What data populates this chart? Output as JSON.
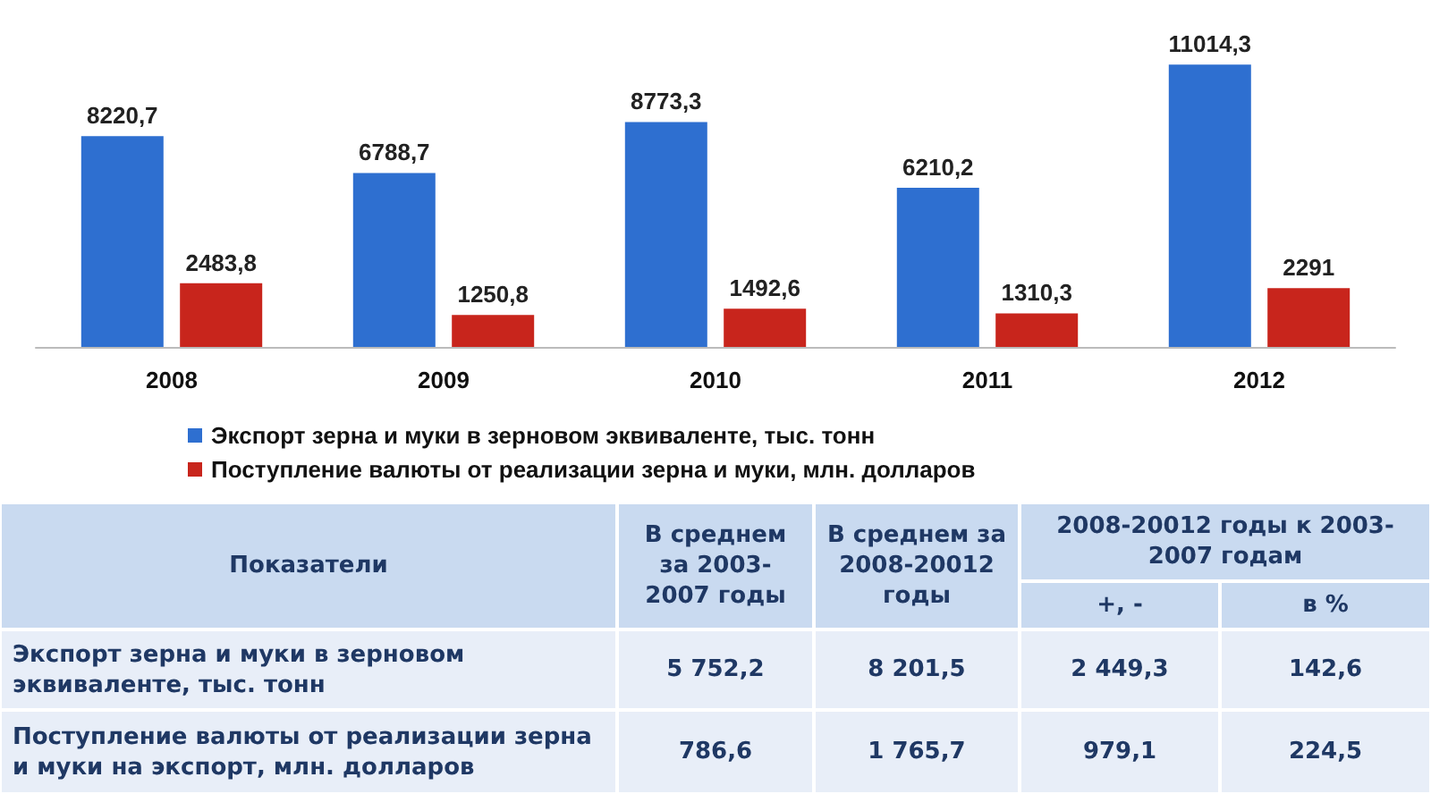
{
  "chart_data": [
    {
      "type": "bar",
      "categories": [
        "2008",
        "2009",
        "2010",
        "2011",
        "2012"
      ],
      "series": [
        {
          "name": "Экспорт зерна и муки в зерновом эквиваленте, тыс. тонн",
          "color": "#2e6fd0",
          "values": [
            8220.7,
            6788.7,
            8773.3,
            6210.2,
            11014.3
          ],
          "value_labels": [
            "8220,7",
            "6788,7",
            "8773,3",
            "6210,2",
            "11014,3"
          ]
        },
        {
          "name": "Поступление валюты от реализации зерна и муки, млн. долларов",
          "color": "#c8251c",
          "values": [
            2483.8,
            1250.8,
            1492.6,
            1310.3,
            2291
          ],
          "value_labels": [
            "2483,8",
            "1250,8",
            "1492,6",
            "1310,3",
            "2291"
          ]
        }
      ],
      "legend": "bottom",
      "tick_labels": "x"
    },
    {
      "type": "other",
      "annotations": [
        "Показатели",
        "В среднем за 2003-2007 годы",
        "В среднем за 2008-20012 годы",
        "2008-20012 годы к 2003-2007 годам",
        "+, -",
        "в %",
        "Экспорт зерна и муки в зерновом эквиваленте, тыс. тонн",
        "5 752,2",
        "8 201,5",
        "2 449,3",
        "142,6",
        "Поступление валюты от реализации зерна и муки на экспорт, млн. долларов",
        "786,6",
        "1 765,7",
        "979,1",
        "224,5"
      ]
    }
  ]
}
